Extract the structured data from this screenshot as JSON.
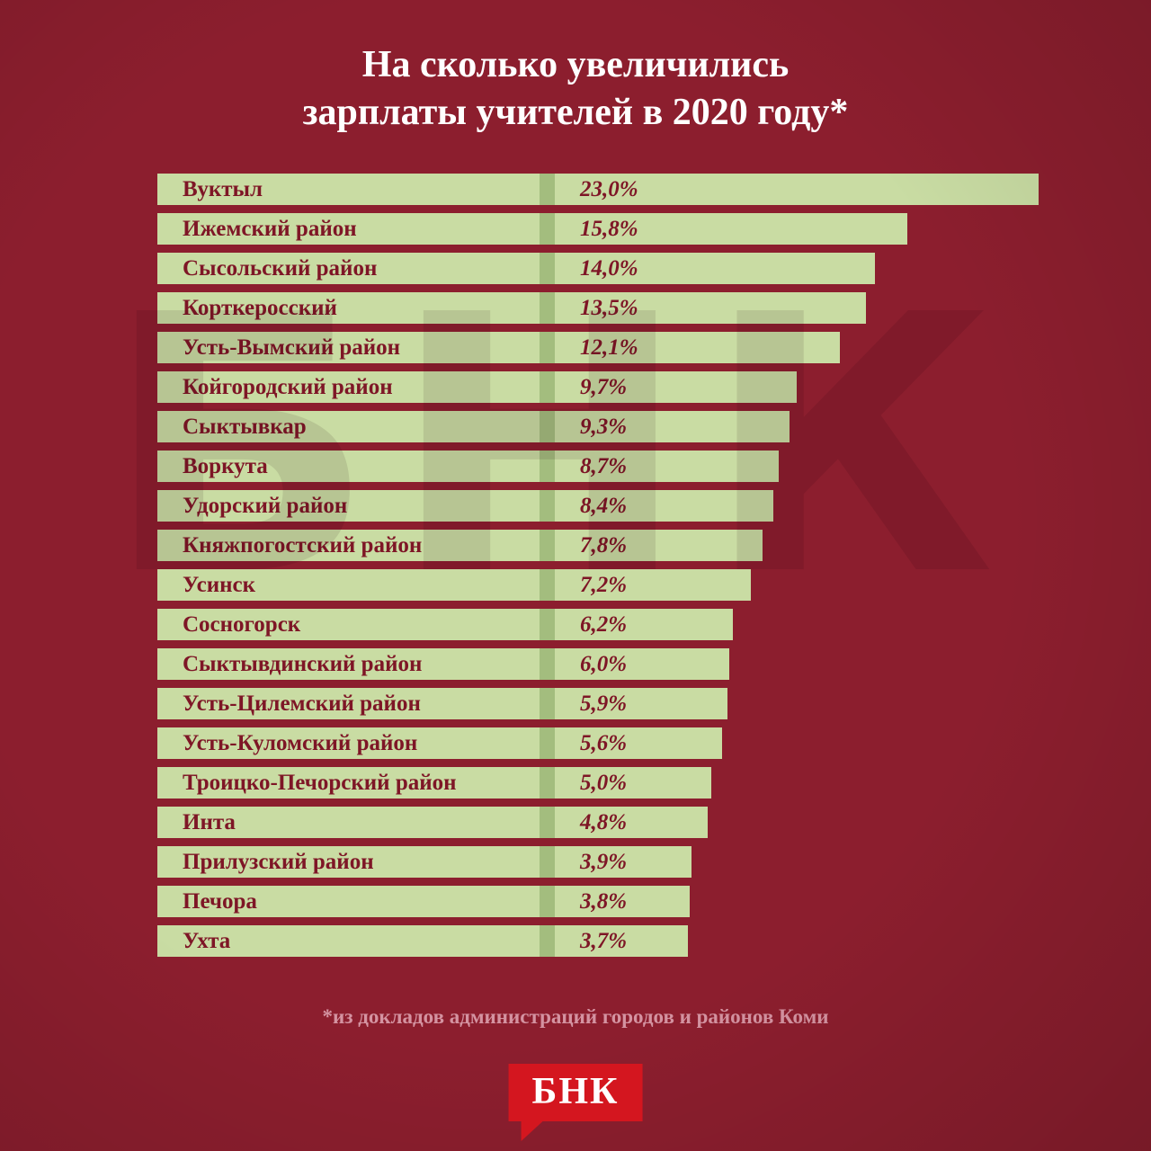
{
  "title": {
    "line1": "На сколько увеличились",
    "line2": "зарплаты учителей в 2020 году*"
  },
  "footnote": {
    "text": "*из докладов администраций городов и районов Коми"
  },
  "watermark": {
    "text": "БНК"
  },
  "logo": {
    "text": "БНК"
  },
  "colors": {
    "background": "#8c1e2e",
    "bar": "#c9dca3",
    "bar_divider": "#a3bd7e",
    "label_text": "#7e1626",
    "title_text": "#ffffff",
    "footnote_text": "#d493a1",
    "logo_background": "#d4161f",
    "logo_text": "#ffffff"
  },
  "chart_data": {
    "type": "bar",
    "orientation": "horizontal",
    "title": "На сколько увеличились зарплаты учителей в 2020 году*",
    "unit": "%",
    "decimal_separator": ",",
    "xlim": [
      0,
      23
    ],
    "grid": false,
    "legend": false,
    "categories": [
      "Вуктыл",
      "Ижемский район",
      "Сысольский район",
      "Корткеросский",
      "Усть-Вымский район",
      "Койгородский район",
      "Сыктывкар",
      "Воркута",
      "Удорский район",
      "Княжпогостский район",
      "Усинск",
      "Сосногорск",
      "Сыктывдинский район",
      "Усть-Цилемский район",
      "Усть-Куломский район",
      "Троицко-Печорский район",
      "Инта",
      "Прилузский район",
      "Печора",
      "Ухта"
    ],
    "values": [
      23.0,
      15.8,
      14.0,
      13.5,
      12.1,
      9.7,
      9.3,
      8.7,
      8.4,
      7.8,
      7.2,
      6.2,
      6.0,
      5.9,
      5.6,
      5.0,
      4.8,
      3.9,
      3.8,
      3.7
    ],
    "value_labels": [
      "23,0%",
      "15,8%",
      "14,0%",
      "13,5%",
      "12,1%",
      "9,7%",
      "9,3%",
      "8,7%",
      "8,4%",
      "7,8%",
      "7,2%",
      "6,2%",
      "6,0%",
      "5,9%",
      "5,6%",
      "5,0%",
      "4,8%",
      "3,9%",
      "3,8%",
      "3,7%"
    ],
    "source_note": "*из докладов администраций городов и районов Коми"
  }
}
